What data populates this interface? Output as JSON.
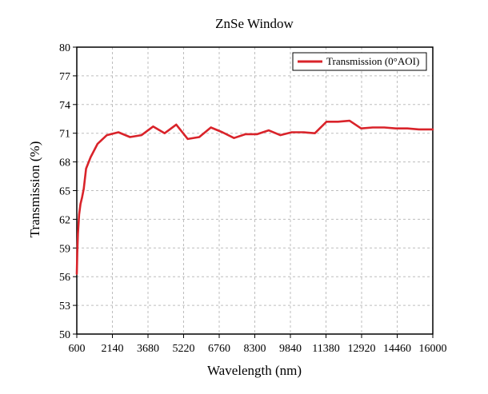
{
  "chart_data": {
    "type": "line",
    "title": "ZnSe Window",
    "xlabel": "Wavelength (nm)",
    "ylabel": "Transmission (%)",
    "xlim": [
      600,
      16000
    ],
    "ylim": [
      50,
      80
    ],
    "xticks": [
      600,
      2140,
      3680,
      5220,
      6760,
      8300,
      9840,
      11380,
      12920,
      14460,
      16000
    ],
    "yticks": [
      50,
      53,
      56,
      59,
      62,
      65,
      68,
      71,
      74,
      77,
      80
    ],
    "grid": true,
    "legend_position": "top-right",
    "series": [
      {
        "name": "Transmission (0°AOI)",
        "color": "#d9232a",
        "x": [
          600,
          620,
          650,
          700,
          760,
          830,
          900,
          1000,
          1200,
          1500,
          1900,
          2400,
          2900,
          3400,
          3900,
          4400,
          4900,
          5400,
          5900,
          6400,
          6900,
          7400,
          7900,
          8400,
          8900,
          9400,
          9900,
          10400,
          10900,
          11400,
          11900,
          12400,
          12900,
          13400,
          13900,
          14400,
          14900,
          15400,
          15900,
          16000
        ],
        "values": [
          56.3,
          58.5,
          60.5,
          62.5,
          63.6,
          64.3,
          65.2,
          67.3,
          68.5,
          69.9,
          70.8,
          71.1,
          70.6,
          70.8,
          71.7,
          71.0,
          71.9,
          70.4,
          70.6,
          71.6,
          71.1,
          70.5,
          70.9,
          70.9,
          71.3,
          70.8,
          71.1,
          71.1,
          71.0,
          72.2,
          72.2,
          72.3,
          71.5,
          71.6,
          71.6,
          71.5,
          71.5,
          71.4,
          71.4,
          71.4
        ]
      }
    ]
  }
}
